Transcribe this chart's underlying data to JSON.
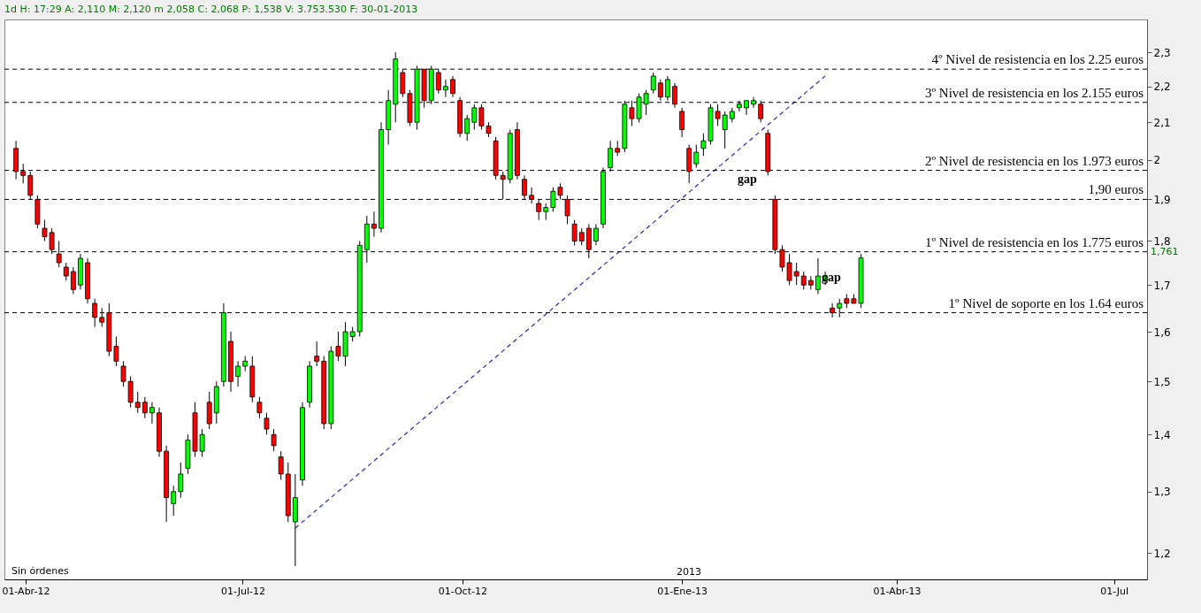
{
  "chart_data": {
    "type": "candlestick",
    "title": "1d H: 17:29 A: 2,110 M: 2,120 m 2,058 C: 2,068 P: 1,538 V: 3.753.530 F: 30-01-2013",
    "x": [
      "2012-03-28",
      "2012-03-31",
      "2012-04-03",
      "2012-04-06",
      "2012-04-09",
      "2012-04-12",
      "2012-04-15",
      "2012-04-18",
      "2012-04-21",
      "2012-04-24",
      "2012-04-27",
      "2012-04-30",
      "2012-05-03",
      "2012-05-06",
      "2012-05-09",
      "2012-05-12",
      "2012-05-15",
      "2012-05-18",
      "2012-05-21",
      "2012-05-24",
      "2012-05-27",
      "2012-05-30",
      "2012-06-02",
      "2012-06-05",
      "2012-06-08",
      "2012-06-11",
      "2012-06-14",
      "2012-06-17",
      "2012-06-20",
      "2012-06-23",
      "2012-06-26",
      "2012-06-29",
      "2012-07-02",
      "2012-07-05",
      "2012-07-08",
      "2012-07-11",
      "2012-07-14",
      "2012-07-17",
      "2012-07-20",
      "2012-07-23",
      "2012-07-26",
      "2012-07-29",
      "2012-08-01",
      "2012-08-04",
      "2012-08-07",
      "2012-08-10",
      "2012-08-13",
      "2012-08-16",
      "2012-08-19",
      "2012-08-22",
      "2012-08-25",
      "2012-08-28",
      "2012-08-31",
      "2012-09-03",
      "2012-09-06",
      "2012-09-09",
      "2012-09-12",
      "2012-09-15",
      "2012-09-18",
      "2012-09-21",
      "2012-09-24",
      "2012-09-27",
      "2012-09-30",
      "2012-10-03",
      "2012-10-06",
      "2012-10-09",
      "2012-10-12",
      "2012-10-15",
      "2012-10-18",
      "2012-10-21",
      "2012-10-24",
      "2012-10-27",
      "2012-10-30",
      "2012-11-02",
      "2012-11-05",
      "2012-11-08",
      "2012-11-11",
      "2012-11-14",
      "2012-11-17",
      "2012-11-20",
      "2012-11-23",
      "2012-11-26",
      "2012-11-29",
      "2012-12-02",
      "2012-12-05",
      "2012-12-08",
      "2012-12-11",
      "2012-12-14",
      "2012-12-17",
      "2012-12-20",
      "2012-12-23",
      "2012-12-26",
      "2012-12-29",
      "2013-01-01",
      "2013-01-04",
      "2013-01-07",
      "2013-01-10",
      "2013-01-13",
      "2013-01-16",
      "2013-01-19",
      "2013-01-22",
      "2013-01-25",
      "2013-01-28",
      "2013-01-31",
      "2013-02-03",
      "2013-02-06",
      "2013-02-09",
      "2013-02-12",
      "2013-02-15",
      "2013-02-18",
      "2013-02-21",
      "2013-02-24",
      "2013-02-27",
      "2013-03-02",
      "2013-03-05",
      "2013-03-08",
      "2013-03-11",
      "2013-03-14",
      "2013-03-17"
    ],
    "ohlc": [
      [
        2.03,
        2.05,
        1.95,
        1.97
      ],
      [
        1.97,
        1.99,
        1.94,
        1.96
      ],
      [
        1.96,
        1.97,
        1.9,
        1.91
      ],
      [
        1.9,
        1.91,
        1.83,
        1.84
      ],
      [
        1.83,
        1.85,
        1.8,
        1.81
      ],
      [
        1.82,
        1.83,
        1.77,
        1.78
      ],
      [
        1.77,
        1.8,
        1.74,
        1.75
      ],
      [
        1.74,
        1.75,
        1.71,
        1.72
      ],
      [
        1.73,
        1.74,
        1.68,
        1.69
      ],
      [
        1.7,
        1.77,
        1.69,
        1.76
      ],
      [
        1.75,
        1.76,
        1.66,
        1.67
      ],
      [
        1.66,
        1.67,
        1.61,
        1.63
      ],
      [
        1.63,
        1.65,
        1.61,
        1.62
      ],
      [
        1.64,
        1.66,
        1.55,
        1.56
      ],
      [
        1.57,
        1.59,
        1.53,
        1.54
      ],
      [
        1.53,
        1.54,
        1.49,
        1.5
      ],
      [
        1.5,
        1.51,
        1.45,
        1.46
      ],
      [
        1.46,
        1.48,
        1.44,
        1.45
      ],
      [
        1.46,
        1.47,
        1.43,
        1.44
      ],
      [
        1.44,
        1.46,
        1.42,
        1.45
      ],
      [
        1.44,
        1.45,
        1.36,
        1.37
      ],
      [
        1.37,
        1.38,
        1.25,
        1.29
      ],
      [
        1.28,
        1.31,
        1.26,
        1.3
      ],
      [
        1.3,
        1.35,
        1.29,
        1.33
      ],
      [
        1.34,
        1.4,
        1.33,
        1.39
      ],
      [
        1.44,
        1.46,
        1.36,
        1.37
      ],
      [
        1.37,
        1.41,
        1.36,
        1.4
      ],
      [
        1.46,
        1.48,
        1.41,
        1.42
      ],
      [
        1.44,
        1.5,
        1.42,
        1.49
      ],
      [
        1.5,
        1.66,
        1.49,
        1.64
      ],
      [
        1.58,
        1.6,
        1.48,
        1.5
      ],
      [
        1.51,
        1.54,
        1.49,
        1.53
      ],
      [
        1.53,
        1.55,
        1.52,
        1.54
      ],
      [
        1.53,
        1.55,
        1.46,
        1.47
      ],
      [
        1.46,
        1.47,
        1.43,
        1.44
      ],
      [
        1.43,
        1.44,
        1.4,
        1.41
      ],
      [
        1.4,
        1.41,
        1.37,
        1.38
      ],
      [
        1.36,
        1.37,
        1.32,
        1.33
      ],
      [
        1.33,
        1.35,
        1.25,
        1.26
      ],
      [
        1.25,
        1.33,
        1.18,
        1.29
      ],
      [
        1.32,
        1.46,
        1.31,
        1.45
      ],
      [
        1.46,
        1.54,
        1.45,
        1.53
      ],
      [
        1.55,
        1.58,
        1.53,
        1.54
      ],
      [
        1.54,
        1.55,
        1.41,
        1.42
      ],
      [
        1.42,
        1.57,
        1.41,
        1.56
      ],
      [
        1.57,
        1.6,
        1.54,
        1.55
      ],
      [
        1.55,
        1.62,
        1.53,
        1.6
      ],
      [
        1.59,
        1.61,
        1.58,
        1.6
      ],
      [
        1.6,
        1.8,
        1.59,
        1.79
      ],
      [
        1.78,
        1.86,
        1.75,
        1.84
      ],
      [
        1.84,
        1.87,
        1.81,
        1.83
      ],
      [
        1.83,
        2.1,
        1.82,
        2.08
      ],
      [
        2.08,
        2.19,
        2.04,
        2.16
      ],
      [
        2.15,
        2.3,
        2.1,
        2.28
      ],
      [
        2.24,
        2.25,
        2.17,
        2.18
      ],
      [
        2.18,
        2.19,
        2.09,
        2.1
      ],
      [
        2.1,
        2.26,
        2.08,
        2.25
      ],
      [
        2.25,
        2.25,
        2.14,
        2.16
      ],
      [
        2.16,
        2.26,
        2.15,
        2.25
      ],
      [
        2.24,
        2.25,
        2.18,
        2.19
      ],
      [
        2.19,
        2.22,
        2.17,
        2.2
      ],
      [
        2.22,
        2.23,
        2.17,
        2.18
      ],
      [
        2.16,
        2.17,
        2.06,
        2.07
      ],
      [
        2.07,
        2.12,
        2.05,
        2.11
      ],
      [
        2.1,
        2.15,
        2.08,
        2.14
      ],
      [
        2.14,
        2.15,
        2.08,
        2.09
      ],
      [
        2.09,
        2.1,
        2.06,
        2.07
      ],
      [
        2.05,
        2.06,
        1.95,
        1.96
      ],
      [
        1.96,
        1.97,
        1.9,
        1.95
      ],
      [
        1.95,
        2.08,
        1.94,
        2.07
      ],
      [
        2.08,
        2.1,
        1.95,
        1.96
      ],
      [
        1.95,
        1.96,
        1.9,
        1.91
      ],
      [
        1.91,
        1.93,
        1.89,
        1.9
      ],
      [
        1.89,
        1.9,
        1.85,
        1.87
      ],
      [
        1.87,
        1.89,
        1.85,
        1.88
      ],
      [
        1.88,
        1.93,
        1.87,
        1.92
      ],
      [
        1.93,
        1.94,
        1.9,
        1.91
      ],
      [
        1.9,
        1.91,
        1.84,
        1.86
      ],
      [
        1.84,
        1.85,
        1.79,
        1.8
      ],
      [
        1.82,
        1.83,
        1.79,
        1.8
      ],
      [
        1.83,
        1.84,
        1.76,
        1.78
      ],
      [
        1.8,
        1.84,
        1.79,
        1.83
      ],
      [
        1.84,
        1.98,
        1.83,
        1.97
      ],
      [
        1.98,
        2.05,
        1.97,
        2.03
      ],
      [
        2.03,
        2.05,
        2.01,
        2.02
      ],
      [
        2.03,
        2.16,
        2.02,
        2.15
      ],
      [
        2.14,
        2.16,
        2.09,
        2.11
      ],
      [
        2.11,
        2.18,
        2.1,
        2.17
      ],
      [
        2.15,
        2.19,
        2.12,
        2.18
      ],
      [
        2.19,
        2.24,
        2.18,
        2.23
      ],
      [
        2.21,
        2.22,
        2.16,
        2.17
      ],
      [
        2.17,
        2.23,
        2.16,
        2.22
      ],
      [
        2.2,
        2.21,
        2.14,
        2.15
      ],
      [
        2.13,
        2.14,
        2.06,
        2.08
      ],
      [
        2.03,
        2.04,
        1.94,
        1.97
      ],
      [
        1.99,
        2.04,
        1.98,
        2.02
      ],
      [
        2.03,
        2.07,
        2.01,
        2.05
      ],
      [
        2.05,
        2.15,
        2.04,
        2.14
      ],
      [
        2.13,
        2.15,
        2.09,
        2.11
      ],
      [
        2.08,
        2.13,
        2.03,
        2.12
      ],
      [
        2.11,
        2.14,
        2.1,
        2.13
      ],
      [
        2.14,
        2.16,
        2.13,
        2.15
      ],
      [
        2.14,
        2.16,
        2.12,
        2.16
      ],
      [
        2.15,
        2.17,
        2.14,
        2.16
      ],
      [
        2.15,
        2.16,
        2.1,
        2.11
      ],
      [
        2.07,
        2.08,
        1.96,
        1.97
      ],
      [
        1.9,
        1.91,
        1.77,
        1.78
      ],
      [
        1.78,
        1.79,
        1.73,
        1.74
      ],
      [
        1.75,
        1.77,
        1.7,
        1.71
      ],
      [
        1.73,
        1.75,
        1.7,
        1.72
      ],
      [
        1.72,
        1.73,
        1.69,
        1.7
      ],
      [
        1.71,
        1.72,
        1.69,
        1.7
      ],
      [
        1.69,
        1.76,
        1.68,
        1.72
      ],
      [
        1.71,
        1.73,
        1.7,
        1.72
      ],
      [
        1.65,
        1.66,
        1.63,
        1.64
      ],
      [
        1.65,
        1.67,
        1.63,
        1.66
      ],
      [
        1.67,
        1.68,
        1.65,
        1.66
      ],
      [
        1.67,
        1.68,
        1.66,
        1.66
      ],
      [
        1.66,
        1.77,
        1.65,
        1.761
      ]
    ],
    "colors": [
      "#ff0000",
      "#ff0000",
      "#ff0000",
      "#ff0000",
      "#ff0000",
      "#ff0000",
      "#ff0000",
      "#ff0000",
      "#ff0000",
      "#00ff00",
      "#ff0000",
      "#ff0000",
      "#ff0000",
      "#ff0000",
      "#ff0000",
      "#ff0000",
      "#ff0000",
      "#ff0000",
      "#ff0000",
      "#00ff00",
      "#ff0000",
      "#ff0000",
      "#00ff00",
      "#00ff00",
      "#00ff00",
      "#ff0000",
      "#00ff00",
      "#ff0000",
      "#00ff00",
      "#00ff00",
      "#ff0000",
      "#00ff00",
      "#00ff00",
      "#ff0000",
      "#ff0000",
      "#ff0000",
      "#ff0000",
      "#ff0000",
      "#ff0000",
      "#00ff00",
      "#00ff00",
      "#00ff00",
      "#ff0000",
      "#ff0000",
      "#00ff00",
      "#ff0000",
      "#00ff00",
      "#00ff00",
      "#00ff00",
      "#00ff00",
      "#ff0000",
      "#00ff00",
      "#00ff00",
      "#00ff00",
      "#ff0000",
      "#ff0000",
      "#00ff00",
      "#ff0000",
      "#00ff00",
      "#ff0000",
      "#00ff00",
      "#ff0000",
      "#ff0000",
      "#00ff00",
      "#00ff00",
      "#ff0000",
      "#ff0000",
      "#ff0000",
      "#ff0000",
      "#00ff00",
      "#ff0000",
      "#ff0000",
      "#ff0000",
      "#ff0000",
      "#00ff00",
      "#00ff00",
      "#ff0000",
      "#ff0000",
      "#ff0000",
      "#ff0000",
      "#ff0000",
      "#00ff00",
      "#00ff00",
      "#00ff00",
      "#ff0000",
      "#00ff00",
      "#ff0000",
      "#00ff00",
      "#00ff00",
      "#00ff00",
      "#ff0000",
      "#00ff00",
      "#ff0000",
      "#ff0000",
      "#ff0000",
      "#00ff00",
      "#00ff00",
      "#00ff00",
      "#ff0000",
      "#00ff00",
      "#00ff00",
      "#00ff00",
      "#00ff00",
      "#00ff00",
      "#ff0000",
      "#ff0000",
      "#ff0000",
      "#ff0000",
      "#ff0000",
      "#ff0000",
      "#ff0000",
      "#ff0000",
      "#00ff00",
      "#00ff00",
      "#ff0000",
      "#00ff00",
      "#ff0000",
      "#ff0000",
      "#00ff00"
    ],
    "series": [
      {
        "type": "line",
        "x": [
          "2012-07-23",
          "2013-03-02"
        ],
        "values": [
          1.24,
          2.23
        ],
        "color": "#2a2aa8",
        "line_style": "dashed"
      }
    ],
    "ref_lines": [
      {
        "axis": "y",
        "value": 2.25,
        "label": "4º Nivel de resistencia en los 2.25 euros",
        "color": "#000000",
        "line_style": "dashed"
      },
      {
        "axis": "y",
        "value": 2.155,
        "label": "3º Nivel de resistencia en los 2.155 euros",
        "color": "#000000",
        "line_style": "dashed"
      },
      {
        "axis": "y",
        "value": 1.973,
        "label": "2º Nivel de resistencia en los 1.973 euros",
        "color": "#000000",
        "line_style": "dashed"
      },
      {
        "axis": "y",
        "value": 1.9,
        "label": "1,90 euros",
        "color": "#000000",
        "line_style": "dashed"
      },
      {
        "axis": "y",
        "value": 1.775,
        "label": "1º Nivel de resistencia en los 1.775 euros",
        "color": "#000000",
        "line_style": "dashed"
      },
      {
        "axis": "y",
        "value": 1.64,
        "label": "1º Nivel de soporte en los 1.64 euros",
        "color": "#000000",
        "line_style": "dashed"
      }
    ],
    "annotations": [
      "gap",
      "gap",
      "1,761",
      "2013",
      "Sin órdenes"
    ],
    "log": "y",
    "grid": false,
    "xlim": [
      "2012-03-25",
      "2013-07-13"
    ],
    "xticks": [
      {
        "value": "2012-04-01",
        "label": "01-Abr-12"
      },
      {
        "value": "2012-07-01",
        "label": "01-Jul-12"
      },
      {
        "value": "2012-10-01",
        "label": "01-Oct-12"
      },
      {
        "value": "2013-01-01",
        "label": "01-Ene-13"
      },
      {
        "value": "2013-04-01",
        "label": "01-Abr-13"
      },
      {
        "value": "2013-07-01",
        "label": "01-Jul"
      }
    ],
    "ylim": [
      1.16,
      2.4
    ],
    "yticks": [
      {
        "value": 1.2,
        "label": "1,2"
      },
      {
        "value": 1.3,
        "label": "1,3"
      },
      {
        "value": 1.4,
        "label": "1,4"
      },
      {
        "value": 1.5,
        "label": "1,5"
      },
      {
        "value": 1.6,
        "label": "1,6"
      },
      {
        "value": 1.7,
        "label": "1,7"
      },
      {
        "value": 1.8,
        "label": "1,8"
      },
      {
        "value": 1.9,
        "label": "1,9"
      },
      2,
      {
        "value": 2.1,
        "label": "2,1"
      },
      {
        "value": 2.2,
        "label": "2,2"
      },
      {
        "value": 2.3,
        "label": "2,3"
      }
    ]
  }
}
